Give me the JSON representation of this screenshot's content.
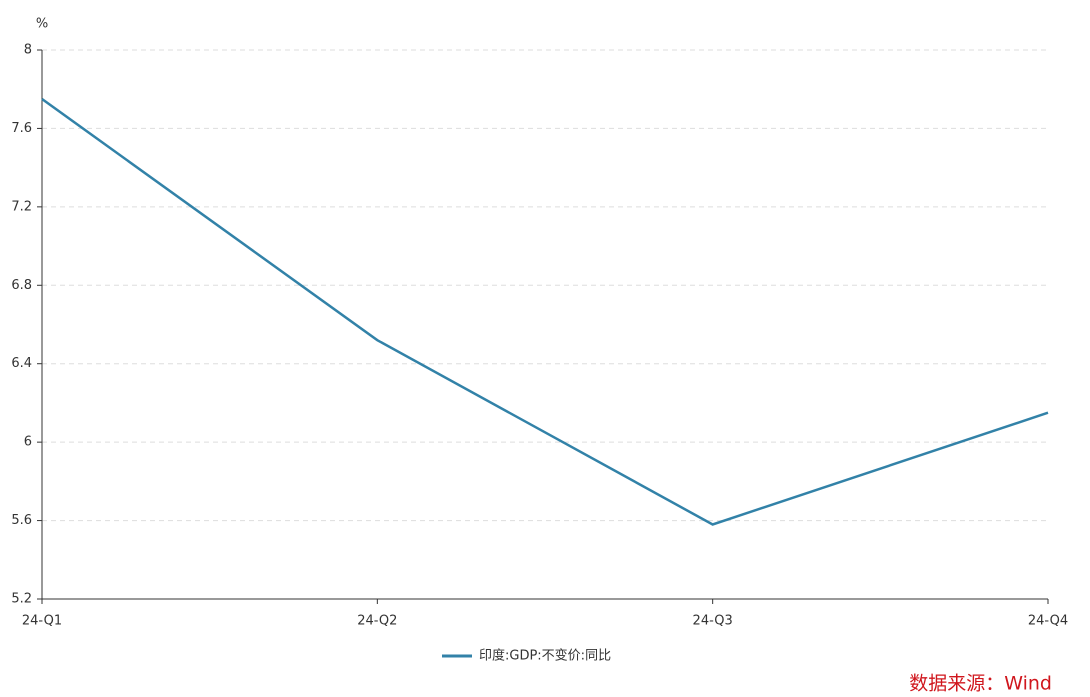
{
  "chart_data": {
    "type": "line",
    "y_unit": "%",
    "categories": [
      "24-Q1",
      "24-Q2",
      "24-Q3",
      "24-Q4"
    ],
    "series": [
      {
        "name": "印度:GDP:不变价:同比",
        "color": "#3282a8",
        "values": [
          7.75,
          6.52,
          5.58,
          6.15
        ]
      }
    ],
    "ylim": [
      5.2,
      8
    ],
    "yticks": [
      5.2,
      5.6,
      6,
      6.4,
      6.8,
      7.2,
      7.6,
      8
    ],
    "grid": true,
    "legend": "bottom",
    "source": "数据来源：Wind"
  }
}
